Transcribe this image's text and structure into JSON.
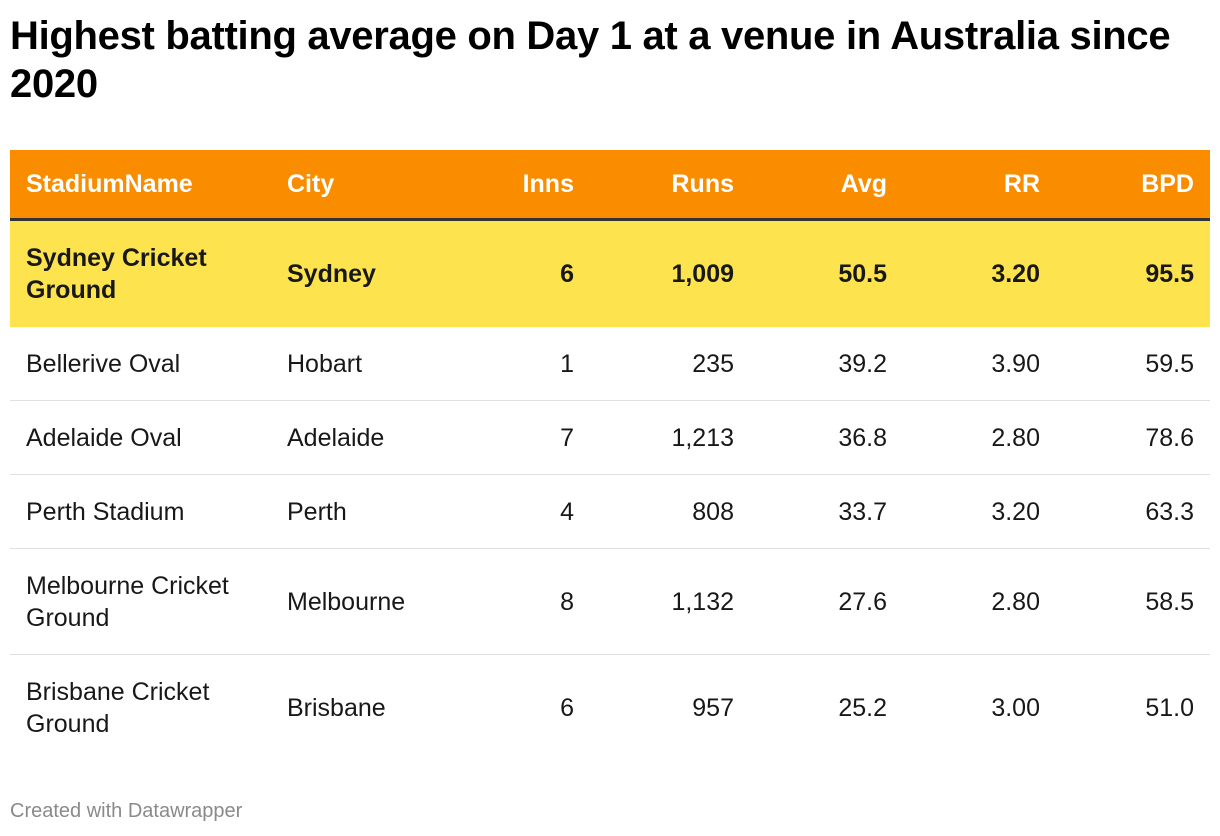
{
  "title": "Highest batting average on Day 1 at a venue in Australia since 2020",
  "footer": "Created with Datawrapper",
  "colors": {
    "header_bg": "#fa8c00",
    "highlight_bg": "#fde44f"
  },
  "chart_data": {
    "type": "table",
    "title": "Highest batting average on Day 1 at a venue in Australia since 2020",
    "columns": [
      "StadiumName",
      "City",
      "Inns",
      "Runs",
      "Avg",
      "RR",
      "BPD"
    ],
    "rows": [
      [
        "Sydney Cricket Ground",
        "Sydney",
        "6",
        "1,009",
        "50.5",
        "3.20",
        "95.5"
      ],
      [
        "Bellerive Oval",
        "Hobart",
        "1",
        "235",
        "39.2",
        "3.90",
        "59.5"
      ],
      [
        "Adelaide Oval",
        "Adelaide",
        "7",
        "1,213",
        "36.8",
        "2.80",
        "78.6"
      ],
      [
        "Perth Stadium",
        "Perth",
        "4",
        "808",
        "33.7",
        "3.20",
        "63.3"
      ],
      [
        "Melbourne Cricket Ground",
        "Melbourne",
        "8",
        "1,132",
        "27.6",
        "2.80",
        "58.5"
      ],
      [
        "Brisbane Cricket Ground",
        "Brisbane",
        "6",
        "957",
        "25.2",
        "3.00",
        "51.0"
      ]
    ],
    "highlighted_row": 0
  }
}
